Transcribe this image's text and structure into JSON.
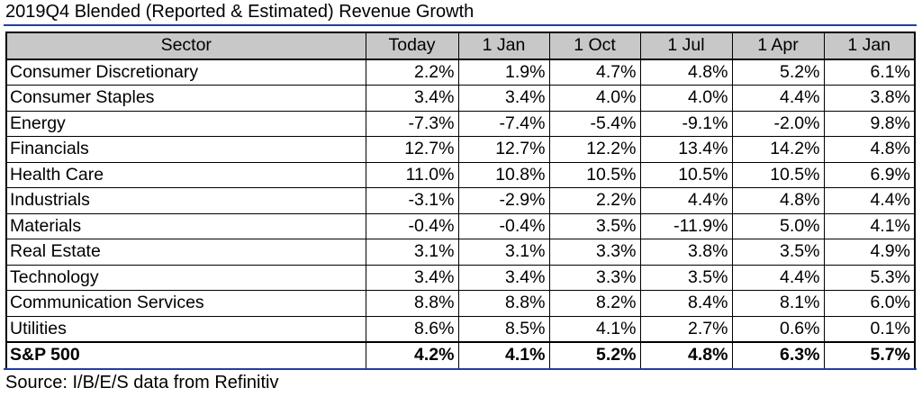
{
  "title": "2019Q4 Blended (Reported & Estimated) Revenue Growth",
  "colors": {
    "rule": "#1f3ea6",
    "header_bg": "#c8c8c8"
  },
  "table": {
    "headers": [
      "Sector",
      "Today",
      "1 Jan",
      "1 Oct",
      "1 Jul",
      "1 Apr",
      "1 Jan"
    ],
    "rows": [
      [
        "Consumer Discretionary",
        "2.2%",
        "1.9%",
        "4.7%",
        "4.8%",
        "5.2%",
        "6.1%"
      ],
      [
        "Consumer Staples",
        "3.4%",
        "3.4%",
        "4.0%",
        "4.0%",
        "4.4%",
        "3.8%"
      ],
      [
        "Energy",
        "-7.3%",
        "-7.4%",
        "-5.4%",
        "-9.1%",
        "-2.0%",
        "9.8%"
      ],
      [
        "Financials",
        "12.7%",
        "12.7%",
        "12.2%",
        "13.4%",
        "14.2%",
        "4.8%"
      ],
      [
        "Health Care",
        "11.0%",
        "10.8%",
        "10.5%",
        "10.5%",
        "10.5%",
        "6.9%"
      ],
      [
        "Industrials",
        "-3.1%",
        "-2.9%",
        "2.2%",
        "4.4%",
        "4.8%",
        "4.4%"
      ],
      [
        "Materials",
        "-0.4%",
        "-0.4%",
        "3.5%",
        "-11.9%",
        "5.0%",
        "4.1%"
      ],
      [
        "Real Estate",
        "3.1%",
        "3.1%",
        "3.3%",
        "3.8%",
        "3.5%",
        "4.9%"
      ],
      [
        "Technology",
        "3.4%",
        "3.4%",
        "3.3%",
        "3.5%",
        "4.4%",
        "5.3%"
      ],
      [
        "Communication Services",
        "8.8%",
        "8.8%",
        "8.2%",
        "8.4%",
        "8.1%",
        "6.0%"
      ],
      [
        "Utilities",
        "8.6%",
        "8.5%",
        "4.1%",
        "2.7%",
        "0.6%",
        "0.1%"
      ]
    ],
    "total": [
      "S&P 500",
      "4.2%",
      "4.1%",
      "5.2%",
      "4.8%",
      "6.3%",
      "5.7%"
    ]
  },
  "source": "Source: I/B/E/S data from Refinitiv"
}
